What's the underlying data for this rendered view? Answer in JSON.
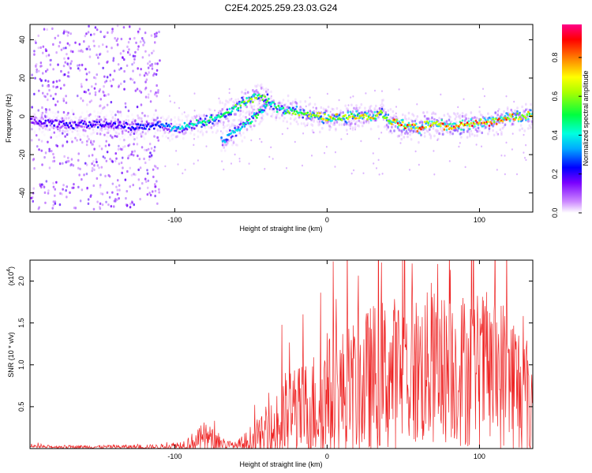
{
  "figure": {
    "title": "C2E4.2025.259.23.03.G24"
  },
  "chart_data": [
    {
      "type": "heatmap",
      "title": "C2E4.2025.259.23.03.G24",
      "xlabel": "Height of straight line (km)",
      "ylabel": "Frequency (Hz)",
      "xlim": [
        -195,
        135
      ],
      "ylim": [
        -50,
        48
      ],
      "x_ticks": [
        -100,
        0,
        100
      ],
      "x_tick_labels": [
        "-100",
        "0",
        "100"
      ],
      "y_ticks": [
        -40,
        -20,
        0,
        20,
        40
      ],
      "y_tick_labels": [
        "-40",
        "-20",
        "0",
        "20",
        "40"
      ],
      "colorbar": {
        "label": "Normalized spectral amplitude",
        "range": [
          0.0,
          0.97
        ],
        "ticks": [
          0.0,
          0.2,
          0.4,
          0.6,
          0.8
        ],
        "tick_labels": [
          "0.0",
          "0.2",
          "0.4",
          "0.6",
          "0.8"
        ],
        "colormap": [
          "#ffffff",
          "#cc88ff",
          "#7a00ff",
          "#0000ff",
          "#00e0ff",
          "#00ff40",
          "#ffff00",
          "#ff8000",
          "#ff0000",
          "#ff00aa"
        ]
      },
      "ridge_series": [
        {
          "name": "main ridge",
          "x": [
            -195,
            -170,
            -150,
            -130,
            -110,
            -100,
            -90,
            -80,
            -70,
            -60,
            -55,
            -50,
            -45,
            -40,
            -35,
            -30,
            -20,
            -10,
            0,
            10,
            20,
            30,
            35,
            40,
            50,
            60,
            65,
            70,
            80,
            90,
            100,
            110,
            120,
            135
          ],
          "y": [
            -2,
            -4,
            -3,
            -5,
            -4,
            -6,
            -4,
            -2,
            1,
            5,
            8,
            10,
            11,
            9,
            5,
            4,
            3,
            1,
            0,
            0,
            1,
            0,
            3,
            -2,
            -4,
            -6,
            -3,
            -4,
            -5,
            -4,
            -3,
            -2,
            0,
            1
          ],
          "amplitude": [
            0.15,
            0.2,
            0.2,
            0.2,
            0.25,
            0.35,
            0.4,
            0.45,
            0.45,
            0.5,
            0.55,
            0.55,
            0.55,
            0.5,
            0.45,
            0.5,
            0.55,
            0.6,
            0.65,
            0.65,
            0.65,
            0.7,
            0.55,
            0.7,
            0.75,
            0.8,
            0.7,
            0.75,
            0.8,
            0.8,
            0.8,
            0.75,
            0.7,
            0.65
          ]
        },
        {
          "name": "secondary ridge",
          "x": [
            -70,
            -65,
            -60,
            -55,
            -50,
            -45,
            -40
          ],
          "y": [
            -12,
            -10,
            -7,
            -4,
            -1,
            3,
            7
          ],
          "amplitude": [
            0.3,
            0.35,
            0.4,
            0.4,
            0.45,
            0.45,
            0.4
          ]
        }
      ],
      "noise_region": {
        "x_range": [
          -195,
          -110
        ],
        "y_range": [
          -48,
          48
        ],
        "amplitude": 0.12
      }
    },
    {
      "type": "line",
      "title": "",
      "xlabel": "Height of straight line (km)",
      "ylabel": "SNR (10 * v/v)",
      "y_scale_label": "(x10",
      "y_scale_exponent": "4",
      "y_scale_suffix": ")",
      "xlim": [
        -195,
        135
      ],
      "ylim": [
        0,
        2.25
      ],
      "x_ticks": [
        -100,
        0,
        100
      ],
      "x_tick_labels": [
        "-100",
        "0",
        "100"
      ],
      "y_ticks": [
        0.5,
        1.0,
        1.5,
        2.0
      ],
      "y_tick_labels": [
        "0.5",
        "1.0",
        "1.5",
        "2.0"
      ],
      "series_color": "#ee2222",
      "envelope": {
        "x": [
          -195,
          -150,
          -110,
          -95,
          -90,
          -85,
          -80,
          -75,
          -70,
          -65,
          -60,
          -55,
          -50,
          -45,
          -40,
          -35,
          -30,
          -25,
          -20,
          -15,
          -10,
          -5,
          0,
          10,
          20,
          30,
          40,
          50,
          60,
          70,
          80,
          90,
          100,
          110,
          120,
          125,
          130,
          135
        ],
        "base": [
          0.02,
          0.02,
          0.02,
          0.04,
          0.07,
          0.09,
          0.12,
          0.09,
          0.07,
          0.04,
          0.03,
          0.05,
          0.08,
          0.12,
          0.12,
          0.18,
          0.3,
          0.4,
          0.42,
          0.45,
          0.5,
          0.55,
          0.6,
          0.65,
          0.72,
          0.8,
          0.88,
          0.9,
          0.92,
          0.95,
          0.95,
          0.95,
          0.95,
          0.9,
          0.85,
          0.7,
          0.6,
          0.55
        ],
        "amp": [
          0.02,
          0.02,
          0.03,
          0.06,
          0.1,
          0.14,
          0.22,
          0.15,
          0.1,
          0.06,
          0.05,
          0.12,
          0.2,
          0.25,
          0.3,
          0.45,
          0.55,
          0.6,
          0.55,
          0.6,
          0.65,
          0.7,
          0.75,
          0.8,
          0.85,
          0.95,
          0.95,
          0.95,
          0.95,
          0.95,
          0.9,
          0.95,
          0.95,
          0.95,
          0.95,
          0.9,
          0.85,
          0.8
        ]
      }
    }
  ]
}
